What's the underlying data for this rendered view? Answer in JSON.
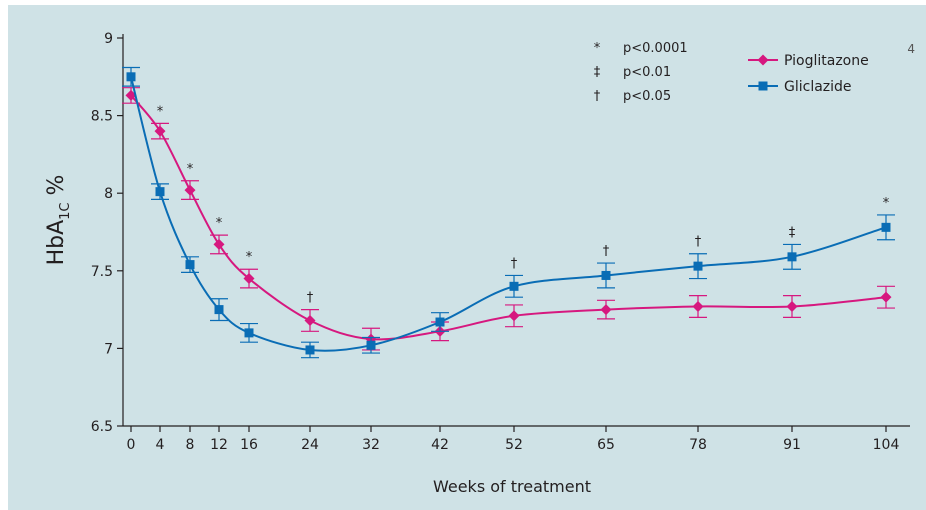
{
  "page_number": "4",
  "chart_data": {
    "type": "line",
    "xlabel": "Weeks of treatment",
    "ylabel_main": "HbA",
    "ylabel_sub": "1C",
    "ylabel_suffix": " %",
    "x_categories": [
      "0",
      "4",
      "8",
      "12",
      "16",
      "24",
      "32",
      "42",
      "52",
      "65",
      "78",
      "91",
      "104"
    ],
    "ylim": [
      6.5,
      9
    ],
    "yticks": [
      "6.5",
      "7",
      "7.5",
      "8",
      "8.5",
      "9"
    ],
    "series": [
      {
        "name": "Pioglitazone",
        "color": "#d6187f",
        "marker": "diamond",
        "x": [
          0,
          4,
          8,
          12,
          16,
          24,
          32,
          42,
          52,
          65,
          78,
          91,
          104
        ],
        "y": [
          8.63,
          8.4,
          8.02,
          7.67,
          7.45,
          7.18,
          7.06,
          7.11,
          7.21,
          7.25,
          7.27,
          7.27,
          7.33
        ],
        "err": [
          0.05,
          0.05,
          0.06,
          0.06,
          0.06,
          0.07,
          0.07,
          0.06,
          0.07,
          0.06,
          0.07,
          0.07,
          0.07
        ]
      },
      {
        "name": "Gliclazide",
        "color": "#0a6db5",
        "marker": "square",
        "x": [
          0,
          4,
          8,
          12,
          16,
          24,
          32,
          42,
          52,
          65,
          78,
          91,
          104
        ],
        "y": [
          8.75,
          8.01,
          7.54,
          7.25,
          7.1,
          6.99,
          7.02,
          7.17,
          7.4,
          7.47,
          7.53,
          7.59,
          7.78
        ],
        "err": [
          0.06,
          0.05,
          0.05,
          0.07,
          0.06,
          0.05,
          0.05,
          0.06,
          0.07,
          0.08,
          0.08,
          0.08,
          0.08
        ]
      }
    ],
    "significance_marks": [
      {
        "x": 4,
        "symbol": "*"
      },
      {
        "x": 8,
        "symbol": "*"
      },
      {
        "x": 12,
        "symbol": "*"
      },
      {
        "x": 16,
        "symbol": "*"
      },
      {
        "x": 24,
        "symbol": "†"
      },
      {
        "x": 52,
        "symbol": "†"
      },
      {
        "x": 65,
        "symbol": "†"
      },
      {
        "x": 78,
        "symbol": "†"
      },
      {
        "x": 91,
        "symbol": "‡"
      },
      {
        "x": 104,
        "symbol": "*"
      }
    ],
    "significance_key": [
      {
        "symbol": "*",
        "label": "p<0.0001"
      },
      {
        "symbol": "‡",
        "label": "p<0.01"
      },
      {
        "symbol": "†",
        "label": "p<0.05"
      }
    ],
    "legend_position": "top-right"
  }
}
